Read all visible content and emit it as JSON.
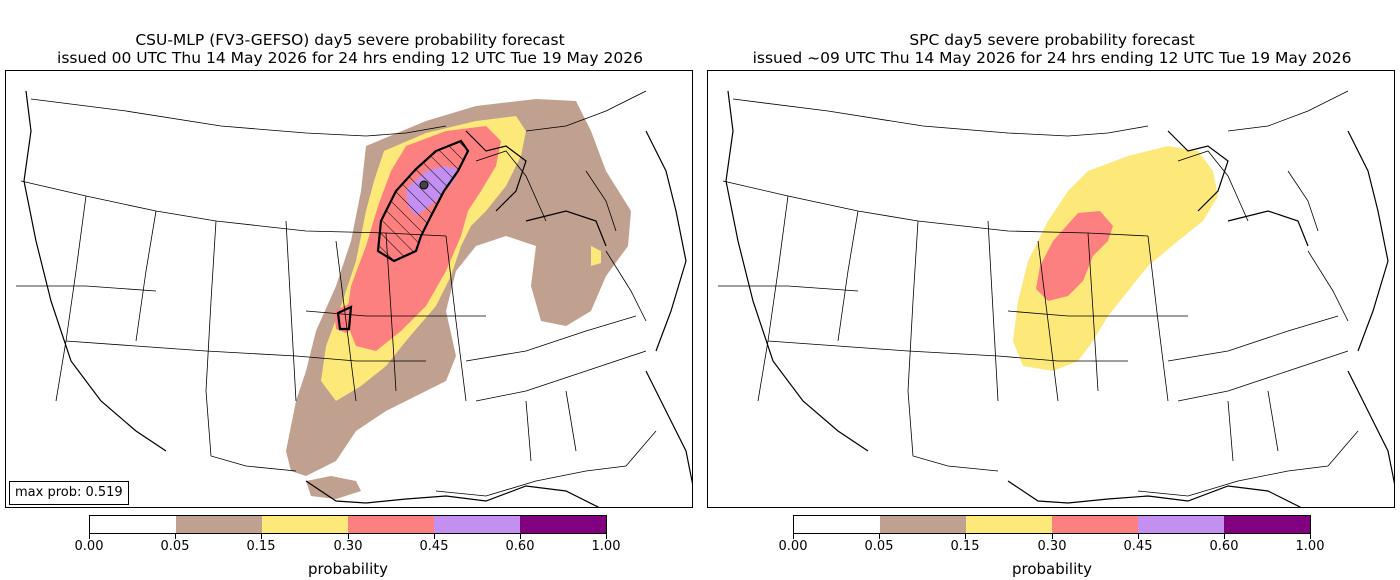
{
  "panels": [
    {
      "title_line1": "CSU-MLP (FV3-GEFSO) day5 severe probability forecast",
      "title_line2": "issued 00 UTC Thu 14 May 2026 for 24 hrs ending 12 UTC Tue 19 May 2026",
      "max_prob_label": "max prob: 0.519",
      "colorbar_label": "probability"
    },
    {
      "title_line1": "SPC day5 severe probability forecast",
      "title_line2": "issued ~09 UTC Thu 14 May 2026 for 24 hrs ending 12 UTC Tue 19 May 2026",
      "colorbar_label": "probability"
    }
  ],
  "colorbar": {
    "levels": [
      "0.00",
      "0.05",
      "0.15",
      "0.30",
      "0.45",
      "0.60",
      "1.00"
    ],
    "colors": [
      "#ffffff",
      "#c0a08e",
      "#fde87a",
      "#fd8080",
      "#c38ff0",
      "#800080"
    ]
  },
  "map_colors": {
    "p05": "#c0a08e",
    "p15": "#fde87a",
    "p30": "#fd8080",
    "p45": "#c38ff0",
    "significant_contour": "#000000"
  }
}
